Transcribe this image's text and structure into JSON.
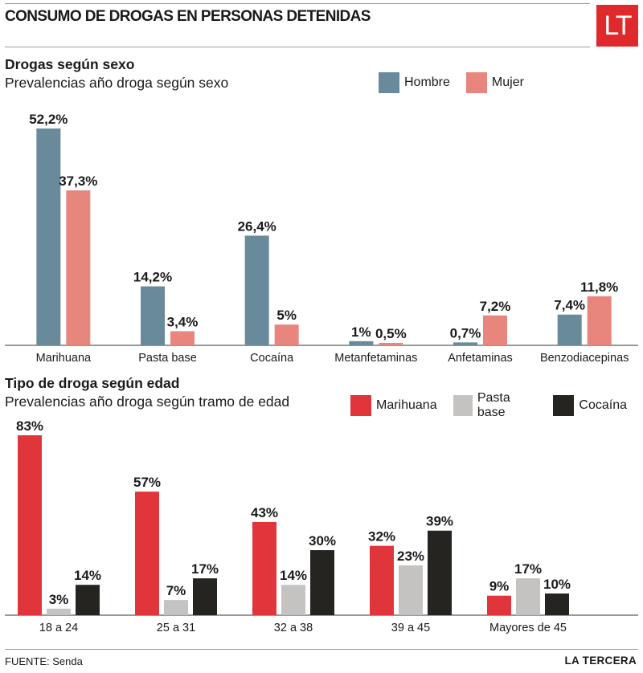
{
  "header": {
    "title": "CONSUMO DE DROGAS EN PERSONAS DETENIDAS",
    "logo_text": "LT"
  },
  "colors": {
    "hombre": "#688a9a",
    "mujer": "#e8857c",
    "marihuana": "#e0353b",
    "pasta_base": "#c4c3c1",
    "cocaina": "#262421",
    "logo": "#e0292b"
  },
  "chart_data": [
    {
      "type": "bar",
      "title": "Drogas según sexo",
      "subtitle": "Prevalencias año droga según sexo",
      "categories": [
        "Marihuana",
        "Pasta base",
        "Cocaína",
        "Metanfetaminas",
        "Anfetaminas",
        "Benzodiacepinas"
      ],
      "series": [
        {
          "name": "Hombre",
          "values": [
            52.2,
            14.2,
            26.4,
            1,
            0.7,
            7.4
          ],
          "labels": [
            "52,2%",
            "14,2%",
            "26,4%",
            "1%",
            "0,7%",
            "7,4%"
          ]
        },
        {
          "name": "Mujer",
          "values": [
            37.3,
            3.4,
            5,
            0.5,
            7.2,
            11.8
          ],
          "labels": [
            "37,3%",
            "3,4%",
            "5%",
            "0,5%",
            "7,2%",
            "11,8%"
          ]
        }
      ],
      "ylim": [
        0,
        52.2
      ],
      "grid": false,
      "legend": "top-right"
    },
    {
      "type": "bar",
      "title": "Tipo de droga según edad",
      "subtitle": "Prevalencias año droga según tramo de edad",
      "categories": [
        "18 a 24",
        "25 a 31",
        "32 a 38",
        "39 a 45",
        "Mayores de 45"
      ],
      "series": [
        {
          "name": "Marihuana",
          "values": [
            83,
            57,
            43,
            32,
            9
          ],
          "labels": [
            "83%",
            "57%",
            "43%",
            "32%",
            "9%"
          ]
        },
        {
          "name": "Pasta base",
          "values": [
            3,
            7,
            14,
            23,
            17
          ],
          "labels": [
            "3%",
            "7%",
            "14%",
            "23%",
            "17%"
          ]
        },
        {
          "name": "Cocaína",
          "values": [
            14,
            17,
            30,
            39,
            10
          ],
          "labels": [
            "14%",
            "17%",
            "30%",
            "39%",
            "10%"
          ]
        }
      ],
      "ylim": [
        0,
        83
      ],
      "grid": false,
      "legend": "top-right"
    }
  ],
  "footer": {
    "source": "FUENTE: Senda",
    "brand": "LA TERCERA"
  }
}
